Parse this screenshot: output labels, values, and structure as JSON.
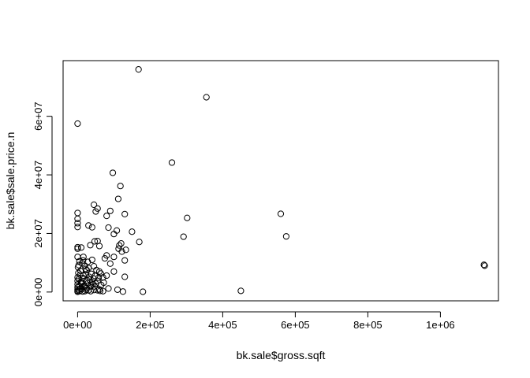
{
  "chart_data": {
    "type": "scatter",
    "title": "",
    "xlabel": "bk.sale$gross.sqft",
    "ylabel": "bk.sale$sale.price.n",
    "xlim": [
      -40000,
      1160000
    ],
    "ylim": [
      -3000000,
      79000000
    ],
    "x_ticks": [
      {
        "value": 0,
        "label": "0e+00"
      },
      {
        "value": 200000,
        "label": "2e+05"
      },
      {
        "value": 400000,
        "label": "4e+05"
      },
      {
        "value": 600000,
        "label": "6e+05"
      },
      {
        "value": 800000,
        "label": "8e+05"
      },
      {
        "value": 1000000,
        "label": "1e+06"
      }
    ],
    "y_ticks": [
      {
        "value": 0,
        "label": "0e+00"
      },
      {
        "value": 20000000,
        "label": "2e+07"
      },
      {
        "value": 40000000,
        "label": "4e+07"
      },
      {
        "value": 60000000,
        "label": "6e+07"
      }
    ],
    "grid": false,
    "marker": "open-circle",
    "series": [
      {
        "points": [
          [
            168000,
            76000000
          ],
          [
            355000,
            66500000
          ],
          [
            0,
            57500000
          ],
          [
            260000,
            44200000
          ],
          [
            97000,
            40700000
          ],
          [
            118000,
            36200000
          ],
          [
            302000,
            25300000
          ],
          [
            560000,
            26700000
          ],
          [
            575000,
            19000000
          ],
          [
            292000,
            18900000
          ],
          [
            1120000,
            9300000
          ],
          [
            1122000,
            9000000
          ],
          [
            450000,
            400000
          ],
          [
            180000,
            100000
          ],
          [
            125000,
            150000
          ],
          [
            45000,
            29800000
          ],
          [
            55000,
            28500000
          ],
          [
            50000,
            27500000
          ],
          [
            0,
            27000000
          ],
          [
            130000,
            26600000
          ],
          [
            80000,
            26000000
          ],
          [
            0,
            25000000
          ],
          [
            112000,
            31800000
          ],
          [
            90000,
            27700000
          ],
          [
            0,
            23500000
          ],
          [
            0,
            22200000
          ],
          [
            30000,
            22700000
          ],
          [
            40000,
            22100000
          ],
          [
            85000,
            22000000
          ],
          [
            108000,
            21000000
          ],
          [
            150000,
            20600000
          ],
          [
            100000,
            19800000
          ],
          [
            47000,
            17300000
          ],
          [
            55000,
            17400000
          ],
          [
            60000,
            15700000
          ],
          [
            120000,
            16600000
          ],
          [
            170000,
            17100000
          ],
          [
            0,
            15300000
          ],
          [
            0,
            14800000
          ],
          [
            10000,
            15200000
          ],
          [
            35000,
            16000000
          ],
          [
            115000,
            15900000
          ],
          [
            113000,
            14800000
          ],
          [
            133000,
            14400000
          ],
          [
            122000,
            13800000
          ],
          [
            100000,
            12000000
          ],
          [
            80000,
            12500000
          ],
          [
            75000,
            11500000
          ],
          [
            0,
            12000000
          ],
          [
            15000,
            10800000
          ],
          [
            40000,
            11000000
          ],
          [
            130000,
            10800000
          ],
          [
            90000,
            9700000
          ],
          [
            60000,
            7000000
          ],
          [
            100000,
            7000000
          ],
          [
            130000,
            5200000
          ],
          [
            80000,
            5600000
          ],
          [
            70000,
            5000000
          ],
          [
            85000,
            1200000
          ],
          [
            55000,
            600000
          ],
          [
            62000,
            400000
          ],
          [
            70000,
            300000
          ],
          [
            110000,
            800000
          ],
          [
            20000,
            9000000
          ],
          [
            30000,
            8200000
          ],
          [
            25000,
            7500000
          ],
          [
            45000,
            8800000
          ],
          [
            5000,
            10500000
          ],
          [
            12000,
            9800000
          ],
          [
            38000,
            6200000
          ],
          [
            22000,
            6000000
          ],
          [
            48000,
            5500000
          ],
          [
            8000,
            7200000
          ],
          [
            15000,
            4800000
          ],
          [
            33000,
            4200000
          ],
          [
            55000,
            3800000
          ],
          [
            3000,
            4500000
          ],
          [
            10000,
            3500000
          ],
          [
            28000,
            3000000
          ],
          [
            42000,
            2600000
          ],
          [
            18000,
            2200000
          ],
          [
            6000,
            2000000
          ],
          [
            35000,
            1800000
          ],
          [
            25000,
            1400000
          ],
          [
            12000,
            1000000
          ],
          [
            4000,
            800000
          ],
          [
            30000,
            600000
          ],
          [
            20000,
            300000
          ],
          [
            0,
            5000000
          ],
          [
            0,
            3800000
          ],
          [
            0,
            2600000
          ],
          [
            0,
            1600000
          ],
          [
            0,
            900000
          ],
          [
            0,
            400000
          ],
          [
            0,
            100000
          ],
          [
            2000,
            6500000
          ],
          [
            16000,
            5600000
          ],
          [
            44000,
            4600000
          ],
          [
            50000,
            2900000
          ],
          [
            8000,
            1200000
          ],
          [
            14000,
            200000
          ],
          [
            36000,
            300000
          ],
          [
            26000,
            4000000
          ],
          [
            40000,
            3300000
          ],
          [
            65000,
            2400000
          ],
          [
            60000,
            900000
          ],
          [
            47000,
            1900000
          ],
          [
            1000,
            8500000
          ],
          [
            3000,
            9200000
          ],
          [
            28000,
            10300000
          ],
          [
            16000,
            12000000
          ],
          [
            22000,
            7900000
          ],
          [
            52000,
            7500000
          ],
          [
            64000,
            6300000
          ],
          [
            7000,
            5900000
          ],
          [
            11000,
            2800000
          ],
          [
            32000,
            5200000
          ],
          [
            58000,
            4900000
          ],
          [
            72000,
            3200000
          ],
          [
            45000,
            700000
          ],
          [
            9000,
            3100000
          ],
          [
            19000,
            1700000
          ],
          [
            37000,
            2300000
          ],
          [
            24000,
            700000
          ],
          [
            5000,
            300000
          ]
        ]
      }
    ]
  }
}
